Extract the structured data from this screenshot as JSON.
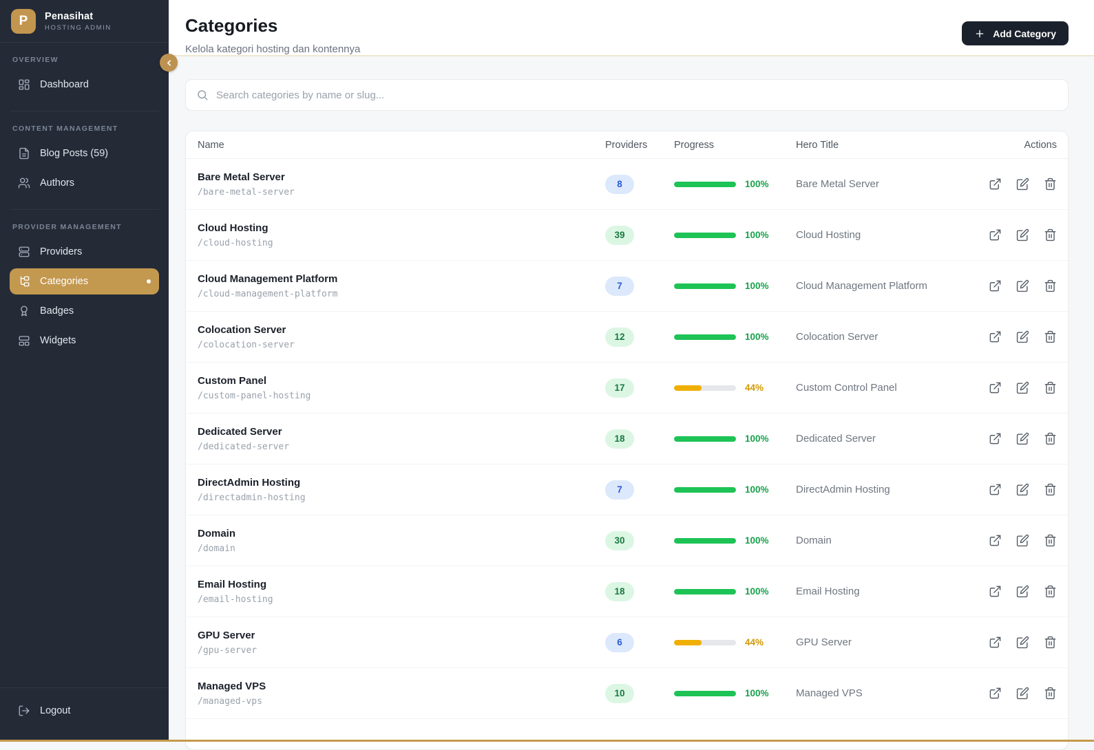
{
  "brand": {
    "name": "Penasihat",
    "subtitle": "HOSTING ADMIN",
    "logo_letter": "P"
  },
  "sidebar": {
    "sections": [
      {
        "label": "OVERVIEW",
        "items": [
          {
            "label": "Dashboard",
            "icon": "dashboard-icon",
            "active": false
          }
        ]
      },
      {
        "label": "CONTENT MANAGEMENT",
        "items": [
          {
            "label": "Blog Posts (59)",
            "icon": "blog-posts-icon",
            "active": false
          },
          {
            "label": "Authors",
            "icon": "authors-icon",
            "active": false
          }
        ]
      },
      {
        "label": "PROVIDER MANAGEMENT",
        "items": [
          {
            "label": "Providers",
            "icon": "providers-icon",
            "active": false
          },
          {
            "label": "Categories",
            "icon": "categories-icon",
            "active": true
          },
          {
            "label": "Badges",
            "icon": "badges-icon",
            "active": false
          },
          {
            "label": "Widgets",
            "icon": "widgets-icon",
            "active": false
          }
        ]
      }
    ],
    "logout_label": "Logout"
  },
  "header": {
    "title": "Categories",
    "subtitle": "Kelola kategori hosting dan kontennya",
    "add_button_label": "Add Category"
  },
  "search": {
    "placeholder": "Search categories by name or slug..."
  },
  "table": {
    "columns": [
      "Name",
      "Providers",
      "Progress",
      "Hero Title",
      "Actions"
    ],
    "rows": [
      {
        "name": "Bare Metal Server",
        "slug": "/bare-metal-server",
        "providers": 8,
        "providers_color": "blue",
        "progress": 100,
        "progress_color": "green",
        "hero_title": "Bare Metal Server"
      },
      {
        "name": "Cloud Hosting",
        "slug": "/cloud-hosting",
        "providers": 39,
        "providers_color": "green",
        "progress": 100,
        "progress_color": "green",
        "hero_title": "Cloud Hosting"
      },
      {
        "name": "Cloud Management Platform",
        "slug": "/cloud-management-platform",
        "providers": 7,
        "providers_color": "blue",
        "progress": 100,
        "progress_color": "green",
        "hero_title": "Cloud Management Platform"
      },
      {
        "name": "Colocation Server",
        "slug": "/colocation-server",
        "providers": 12,
        "providers_color": "green",
        "progress": 100,
        "progress_color": "green",
        "hero_title": "Colocation Server"
      },
      {
        "name": "Custom Panel",
        "slug": "/custom-panel-hosting",
        "providers": 17,
        "providers_color": "green",
        "progress": 44,
        "progress_color": "amber",
        "hero_title": "Custom Control Panel"
      },
      {
        "name": "Dedicated Server",
        "slug": "/dedicated-server",
        "providers": 18,
        "providers_color": "green",
        "progress": 100,
        "progress_color": "green",
        "hero_title": "Dedicated Server"
      },
      {
        "name": "DirectAdmin Hosting",
        "slug": "/directadmin-hosting",
        "providers": 7,
        "providers_color": "blue",
        "progress": 100,
        "progress_color": "green",
        "hero_title": "DirectAdmin Hosting"
      },
      {
        "name": "Domain",
        "slug": "/domain",
        "providers": 30,
        "providers_color": "green",
        "progress": 100,
        "progress_color": "green",
        "hero_title": "Domain"
      },
      {
        "name": "Email Hosting",
        "slug": "/email-hosting",
        "providers": 18,
        "providers_color": "green",
        "progress": 100,
        "progress_color": "green",
        "hero_title": "Email Hosting"
      },
      {
        "name": "GPU Server",
        "slug": "/gpu-server",
        "providers": 6,
        "providers_color": "blue",
        "progress": 44,
        "progress_color": "amber",
        "hero_title": "GPU Server"
      },
      {
        "name": "Managed VPS",
        "slug": "/managed-vps",
        "providers": 10,
        "providers_color": "green",
        "progress": 100,
        "progress_color": "green",
        "hero_title": "Managed VPS"
      }
    ]
  },
  "colors": {
    "accent_gold": "#C3984F",
    "sidebar_bg": "#242B37",
    "add_button_bg": "#1B212C",
    "badge_blue_bg": "#DCE8FB",
    "badge_blue_text": "#2A5BD7",
    "badge_green_bg": "#DCF6E4",
    "badge_green_text": "#177A41",
    "progress_green": "#1DC355",
    "progress_amber": "#EFAF04",
    "percent_green": "#17A24A",
    "percent_amber": "#D29A04",
    "header_border": "#EFE6D4",
    "bottom_strip": "#C49A4D"
  }
}
